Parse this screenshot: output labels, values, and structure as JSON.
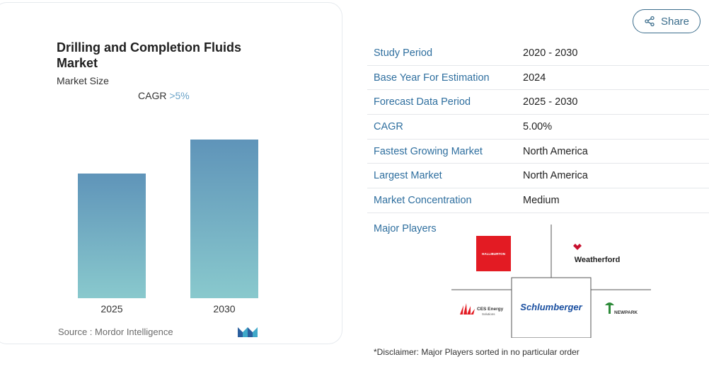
{
  "card": {
    "title": "Drilling and Completion Fluids Market",
    "subtitle": "Market Size",
    "cagr_label": "CAGR",
    "cagr_value": ">5%",
    "source": "Source : Mordor Intelligence"
  },
  "chart_data": {
    "type": "bar",
    "categories": [
      "2025",
      "2030"
    ],
    "values": [
      176,
      224
    ],
    "title": "",
    "xlabel": "",
    "ylabel": "",
    "ylim": [
      0,
      240
    ],
    "grid": false,
    "colors": {
      "top": "#5f94b9",
      "bottom": "#89c9cd"
    }
  },
  "share": {
    "label": "Share",
    "icon": "share-icon"
  },
  "table": {
    "rows": [
      {
        "key": "Study Period",
        "value": "2020 - 2030"
      },
      {
        "key": "Base Year For Estimation",
        "value": "2024"
      },
      {
        "key": "Forecast Data Period",
        "value": "2025 - 2030"
      },
      {
        "key": "CAGR",
        "value": "5.00%"
      },
      {
        "key": "Fastest Growing Market",
        "value": "North America"
      },
      {
        "key": "Largest Market",
        "value": "North America"
      },
      {
        "key": "Market Concentration",
        "value": "Medium"
      }
    ]
  },
  "players": {
    "label": "Major Players",
    "halliburton": "HALLIBURTON",
    "weatherford": "Weatherford",
    "schlumberger": "Schlumberger",
    "ces_line1": "CES Energy",
    "ces_line2": "Solutions",
    "newpark": "NEWPARK"
  },
  "disclaimer": "*Disclaimer: Major Players sorted in no particular order",
  "colors": {
    "accent": "#2f6f9f",
    "halliburton_red": "#e31b23",
    "schlumberger_blue": "#1a4fa0"
  }
}
